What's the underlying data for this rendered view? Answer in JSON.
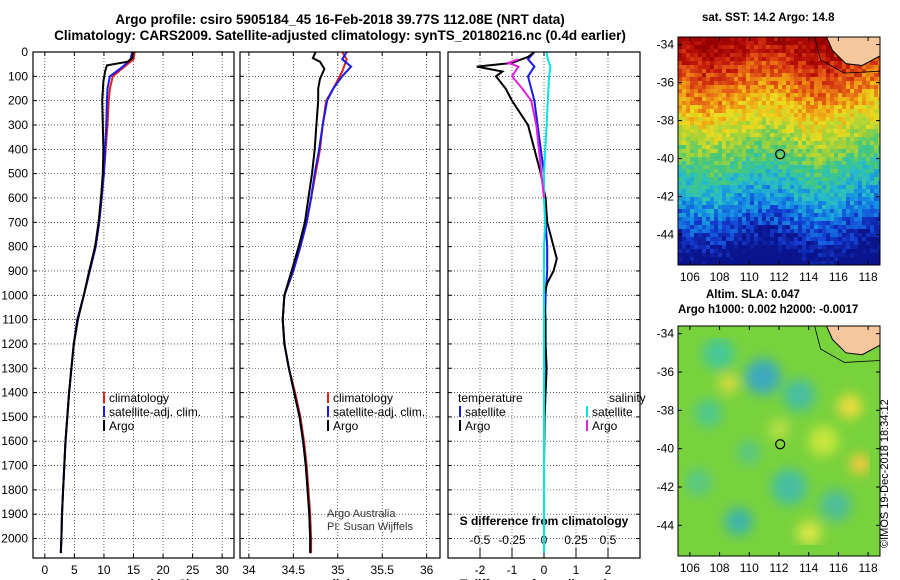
{
  "titles": {
    "line1": "Argo profile: csiro 5905184_45 16-Feb-2018 39.77S 112.08E (NRT data)",
    "line2": "Climatology: CARS2009. Satellite-adjusted climatology: synTS_20180216.nc (0.4d earlier)"
  },
  "sst_map": {
    "title": "sat. SST: 14.2 Argo: 14.8",
    "lat_ticks": [
      "-34",
      "-36",
      "-38",
      "-40",
      "-42",
      "-44"
    ],
    "lon_ticks": [
      "106",
      "108",
      "110",
      "112",
      "114",
      "116",
      "118"
    ],
    "profile_location": {
      "lon": 112.08,
      "lat": -39.77
    }
  },
  "sla_map": {
    "title_line1": "Altim. SLA: 0.047",
    "title_line2": "Argo h1000: 0.002 h2000: -0.0017",
    "lat_ticks": [
      "-34",
      "-36",
      "-38",
      "-40",
      "-42",
      "-44"
    ],
    "lon_ticks": [
      "106",
      "108",
      "110",
      "112",
      "114",
      "116",
      "118"
    ]
  },
  "footer": {
    "credit_line1": "Argo Australia",
    "credit_line2": "PI: Susan Wijffels",
    "stamp": "©IMOS 19-Dec-2018 18:34:12"
  },
  "legend": {
    "climatology": "climatology",
    "satellite_adj": "satellite-adj. clim.",
    "argo": "Argo",
    "diff_temperature": "temperature",
    "diff_salinity": "salinity",
    "satellite": "satellite",
    "diff_argo": "Argo"
  },
  "colors": {
    "climatology": "#e02020",
    "satellite": "#1a1ae6",
    "argo": "#000000",
    "salinity_satellite": "#00e5e5",
    "salinity_argo": "#e020e0"
  },
  "chart_data": [
    {
      "type": "line",
      "xlabel": "temperature (deg C)",
      "x_ticks": [
        "0",
        "5",
        "10",
        "15",
        "20",
        "25",
        "30"
      ],
      "xlim": [
        -2,
        32
      ],
      "ylim": [
        2080,
        0
      ],
      "y_ticks": [
        "0",
        "100",
        "200",
        "300",
        "400",
        "500",
        "600",
        "700",
        "800",
        "900",
        "1000",
        "1100",
        "1200",
        "1300",
        "1400",
        "1500",
        "1600",
        "1700",
        "1800",
        "1900",
        "2000"
      ],
      "grid": true,
      "legend_position": "lower-center",
      "series": [
        {
          "name": "climatology",
          "color": "#e02020",
          "points": [
            [
              15.2,
              0
            ],
            [
              15.0,
              30
            ],
            [
              13.5,
              60
            ],
            [
              11.5,
              100
            ],
            [
              11.0,
              150
            ],
            [
              10.8,
              200
            ],
            [
              10.6,
              300
            ],
            [
              10.3,
              400
            ],
            [
              10.0,
              500
            ],
            [
              9.6,
              600
            ],
            [
              9.2,
              700
            ],
            [
              8.6,
              800
            ],
            [
              7.6,
              900
            ],
            [
              6.6,
              1000
            ],
            [
              5.5,
              1100
            ],
            [
              4.9,
              1200
            ],
            [
              4.5,
              1300
            ],
            [
              4.1,
              1400
            ],
            [
              3.8,
              1500
            ],
            [
              3.5,
              1600
            ],
            [
              3.3,
              1700
            ],
            [
              3.1,
              1800
            ],
            [
              2.9,
              1900
            ],
            [
              2.8,
              2000
            ],
            [
              2.7,
              2060
            ]
          ]
        },
        {
          "name": "satellite-adj. clim.",
          "color": "#1a1ae6",
          "points": [
            [
              14.8,
              0
            ],
            [
              14.5,
              30
            ],
            [
              13.2,
              60
            ],
            [
              11.0,
              100
            ],
            [
              10.6,
              150
            ],
            [
              10.5,
              200
            ],
            [
              10.4,
              300
            ],
            [
              10.2,
              400
            ],
            [
              10.0,
              500
            ],
            [
              9.6,
              600
            ],
            [
              9.2,
              700
            ],
            [
              8.6,
              800
            ],
            [
              7.6,
              900
            ],
            [
              6.6,
              1000
            ],
            [
              5.5,
              1100
            ],
            [
              4.9,
              1200
            ],
            [
              4.5,
              1300
            ],
            [
              4.1,
              1400
            ],
            [
              3.8,
              1500
            ],
            [
              3.5,
              1600
            ],
            [
              3.3,
              1700
            ],
            [
              3.1,
              1800
            ],
            [
              2.9,
              1900
            ],
            [
              2.8,
              2000
            ],
            [
              2.7,
              2060
            ]
          ]
        },
        {
          "name": "Argo",
          "color": "#000000",
          "points": [
            [
              14.9,
              0
            ],
            [
              14.8,
              25
            ],
            [
              14.0,
              40
            ],
            [
              10.5,
              55
            ],
            [
              10.2,
              80
            ],
            [
              9.9,
              120
            ],
            [
              9.7,
              200
            ],
            [
              9.8,
              300
            ],
            [
              9.9,
              400
            ],
            [
              9.8,
              500
            ],
            [
              9.5,
              600
            ],
            [
              9.1,
              700
            ],
            [
              8.5,
              800
            ],
            [
              7.5,
              900
            ],
            [
              6.6,
              1000
            ],
            [
              5.6,
              1100
            ],
            [
              4.9,
              1200
            ],
            [
              4.5,
              1300
            ],
            [
              4.1,
              1400
            ],
            [
              3.8,
              1500
            ],
            [
              3.5,
              1600
            ],
            [
              3.3,
              1700
            ],
            [
              3.1,
              1800
            ],
            [
              2.9,
              1900
            ],
            [
              2.8,
              2000
            ],
            [
              2.7,
              2060
            ]
          ]
        }
      ]
    },
    {
      "type": "line",
      "xlabel": "salinity",
      "x_ticks": [
        "34",
        "34.5",
        "35",
        "35.5",
        "36"
      ],
      "xlim": [
        33.9,
        36.15
      ],
      "ylim": [
        2080,
        0
      ],
      "grid": true,
      "legend_position": "lower-center",
      "series": [
        {
          "name": "climatology",
          "color": "#e02020",
          "points": [
            [
              35.05,
              0
            ],
            [
              35.1,
              30
            ],
            [
              35.05,
              80
            ],
            [
              34.95,
              150
            ],
            [
              34.87,
              200
            ],
            [
              34.83,
              300
            ],
            [
              34.8,
              400
            ],
            [
              34.75,
              500
            ],
            [
              34.7,
              600
            ],
            [
              34.65,
              700
            ],
            [
              34.58,
              800
            ],
            [
              34.5,
              900
            ],
            [
              34.4,
              1000
            ],
            [
              34.38,
              1100
            ],
            [
              34.4,
              1200
            ],
            [
              34.45,
              1300
            ],
            [
              34.52,
              1400
            ],
            [
              34.58,
              1500
            ],
            [
              34.62,
              1600
            ],
            [
              34.65,
              1700
            ],
            [
              34.67,
              1800
            ],
            [
              34.69,
              1900
            ],
            [
              34.7,
              2000
            ],
            [
              34.7,
              2060
            ]
          ]
        },
        {
          "name": "satellite-adj. clim.",
          "color": "#1a1ae6",
          "points": [
            [
              35.1,
              0
            ],
            [
              35.05,
              30
            ],
            [
              35.15,
              60
            ],
            [
              35.05,
              100
            ],
            [
              34.95,
              150
            ],
            [
              34.88,
              200
            ],
            [
              34.83,
              300
            ],
            [
              34.79,
              400
            ],
            [
              34.74,
              500
            ],
            [
              34.7,
              600
            ],
            [
              34.65,
              700
            ],
            [
              34.58,
              800
            ],
            [
              34.5,
              900
            ],
            [
              34.4,
              1000
            ],
            [
              34.38,
              1100
            ],
            [
              34.4,
              1200
            ],
            [
              34.45,
              1300
            ],
            [
              34.51,
              1400
            ],
            [
              34.57,
              1500
            ],
            [
              34.61,
              1600
            ],
            [
              34.64,
              1700
            ],
            [
              34.66,
              1800
            ],
            [
              34.68,
              1900
            ],
            [
              34.69,
              2000
            ],
            [
              34.69,
              2060
            ]
          ]
        },
        {
          "name": "Argo",
          "color": "#000000",
          "points": [
            [
              34.75,
              0
            ],
            [
              34.72,
              25
            ],
            [
              34.8,
              40
            ],
            [
              34.85,
              70
            ],
            [
              34.8,
              110
            ],
            [
              34.78,
              150
            ],
            [
              34.78,
              200
            ],
            [
              34.76,
              300
            ],
            [
              34.74,
              400
            ],
            [
              34.71,
              500
            ],
            [
              34.67,
              600
            ],
            [
              34.63,
              700
            ],
            [
              34.56,
              800
            ],
            [
              34.48,
              900
            ],
            [
              34.4,
              1000
            ],
            [
              34.38,
              1100
            ],
            [
              34.4,
              1200
            ],
            [
              34.45,
              1300
            ],
            [
              34.51,
              1400
            ],
            [
              34.57,
              1500
            ],
            [
              34.61,
              1600
            ],
            [
              34.64,
              1700
            ],
            [
              34.66,
              1800
            ],
            [
              34.68,
              1900
            ],
            [
              34.69,
              2000
            ],
            [
              34.69,
              2060
            ]
          ]
        }
      ]
    },
    {
      "type": "line",
      "xlabel": "T difference from climatology",
      "x_ticks": [
        "-2",
        "-1",
        "0",
        "1",
        "2"
      ],
      "xlim": [
        -3,
        3
      ],
      "secondary_xlabel": "S difference from climatology",
      "secondary_x_ticks": [
        "-0.5",
        "-0.25",
        "0",
        "0.25",
        "0.5"
      ],
      "secondary_xlim": [
        -0.75,
        0.75
      ],
      "ylim": [
        2080,
        0
      ],
      "grid": true,
      "legend_position": "lower-center",
      "series": [
        {
          "name": "temperature satellite",
          "variable": "T",
          "color": "#1a1ae6",
          "points": [
            [
              -0.3,
              0
            ],
            [
              -0.5,
              30
            ],
            [
              -0.3,
              60
            ],
            [
              -0.5,
              100
            ],
            [
              -0.4,
              150
            ],
            [
              -0.3,
              200
            ],
            [
              -0.2,
              300
            ],
            [
              -0.1,
              400
            ],
            [
              0.0,
              500
            ],
            [
              0.0,
              600
            ],
            [
              0.05,
              700
            ],
            [
              0.1,
              800
            ],
            [
              0.1,
              900
            ],
            [
              0.05,
              1000
            ],
            [
              0.02,
              1200
            ],
            [
              0.0,
              1400
            ],
            [
              0.0,
              1700
            ],
            [
              0.0,
              2060
            ]
          ]
        },
        {
          "name": "temperature Argo",
          "variable": "T",
          "color": "#000000",
          "points": [
            [
              -0.3,
              0
            ],
            [
              -0.5,
              20
            ],
            [
              -1.0,
              45
            ],
            [
              -2.1,
              60
            ],
            [
              -1.3,
              80
            ],
            [
              -1.5,
              100
            ],
            [
              -1.2,
              150
            ],
            [
              -1.0,
              200
            ],
            [
              -0.5,
              300
            ],
            [
              -0.3,
              400
            ],
            [
              -0.1,
              500
            ],
            [
              0.05,
              600
            ],
            [
              0.1,
              700
            ],
            [
              0.3,
              800
            ],
            [
              0.4,
              850
            ],
            [
              0.3,
              900
            ],
            [
              0.1,
              950
            ],
            [
              0.0,
              1000
            ],
            [
              0.05,
              1100
            ],
            [
              0.05,
              1200
            ],
            [
              0.08,
              1300
            ],
            [
              0.05,
              1400
            ],
            [
              0.02,
              1500
            ],
            [
              0.0,
              1700
            ],
            [
              0.0,
              2060
            ]
          ]
        },
        {
          "name": "salinity satellite",
          "variable": "S",
          "color": "#00e5e5",
          "points": [
            [
              0.02,
              0
            ],
            [
              0.03,
              30
            ],
            [
              0.05,
              60
            ],
            [
              0.04,
              100
            ],
            [
              0.03,
              200
            ],
            [
              0.02,
              300
            ],
            [
              0.01,
              400
            ],
            [
              0.0,
              500
            ],
            [
              0.0,
              600
            ],
            [
              0.01,
              700
            ],
            [
              0.0,
              800
            ],
            [
              0.0,
              900
            ],
            [
              0.0,
              1000
            ],
            [
              0.0,
              2060
            ]
          ]
        },
        {
          "name": "salinity Argo",
          "variable": "S",
          "color": "#e020e0",
          "points": [
            [
              -0.2,
              30
            ],
            [
              -0.28,
              45
            ],
            [
              -0.2,
              60
            ],
            [
              -0.25,
              100
            ],
            [
              -0.17,
              150
            ],
            [
              -0.1,
              200
            ],
            [
              -0.06,
              300
            ],
            [
              -0.04,
              400
            ],
            [
              -0.02,
              500
            ],
            [
              0.0,
              600
            ]
          ]
        }
      ]
    }
  ]
}
